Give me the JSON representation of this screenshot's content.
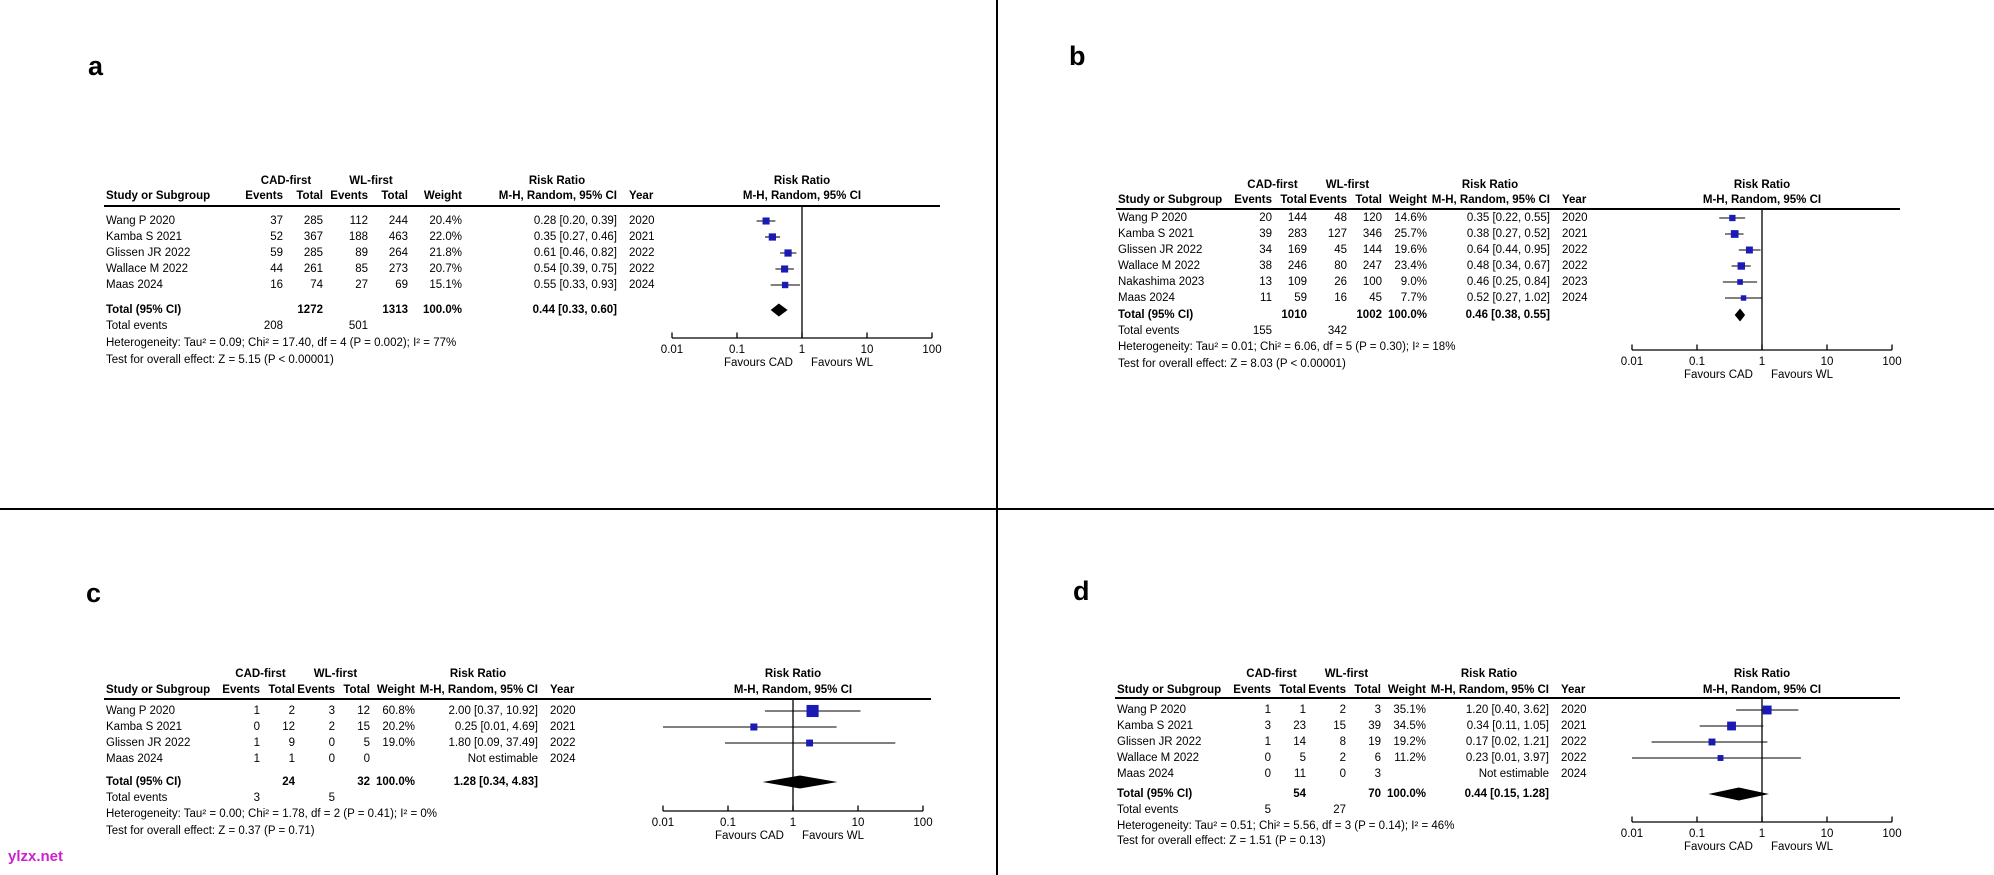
{
  "figure": {
    "watermark": "ylzx.net",
    "watermark_color": "#cc22cc",
    "panel_labels": [
      "a",
      "b",
      "c",
      "d"
    ]
  },
  "headers": {
    "group1": "CAD-first",
    "group2": "WL-first",
    "study": "Study or Subgroup",
    "events": "Events",
    "total": "Total",
    "weight": "Weight",
    "risk_ratio": "Risk Ratio",
    "method_ci": "M-H, Random, 95% CI",
    "year": "Year",
    "total_label": "Total (95% CI)",
    "total_events_label": "Total events"
  },
  "axis": {
    "scale": "log",
    "tick_values": [
      0.01,
      0.1,
      1,
      10,
      100
    ],
    "tick_labels": [
      "0.01",
      "0.1",
      "1",
      "10",
      "100"
    ],
    "favours_left": "Favours CAD",
    "favours_right": "Favours WL"
  },
  "style": {
    "marker_color": "#1a1ab4",
    "diamond_color": "#000000"
  },
  "chart_data": [
    {
      "type": "scatter",
      "subtype": "forest-plot",
      "panel_label": "a",
      "xscale": "log",
      "xlim": [
        0.01,
        100
      ],
      "studies": [
        {
          "study": "Wang P 2020",
          "events1": 37,
          "total1": 285,
          "events2": 112,
          "total2": 244,
          "weight": "20.4%",
          "w": 20.4,
          "ci_text": "0.28 [0.20, 0.39]",
          "year": "2020",
          "rr": 0.28,
          "lo": 0.2,
          "hi": 0.39
        },
        {
          "study": "Kamba S 2021",
          "events1": 52,
          "total1": 367,
          "events2": 188,
          "total2": 463,
          "weight": "22.0%",
          "w": 22.0,
          "ci_text": "0.35 [0.27, 0.46]",
          "year": "2021",
          "rr": 0.35,
          "lo": 0.27,
          "hi": 0.46
        },
        {
          "study": "Glissen JR 2022",
          "events1": 59,
          "total1": 285,
          "events2": 89,
          "total2": 264,
          "weight": "21.8%",
          "w": 21.8,
          "ci_text": "0.61 [0.46, 0.82]",
          "year": "2022",
          "rr": 0.61,
          "lo": 0.46,
          "hi": 0.82
        },
        {
          "study": "Wallace M 2022",
          "events1": 44,
          "total1": 261,
          "events2": 85,
          "total2": 273,
          "weight": "20.7%",
          "w": 20.7,
          "ci_text": "0.54 [0.39, 0.75]",
          "year": "2022",
          "rr": 0.54,
          "lo": 0.39,
          "hi": 0.75
        },
        {
          "study": "Maas 2024",
          "events1": 16,
          "total1": 74,
          "events2": 27,
          "total2": 69,
          "weight": "15.1%",
          "w": 15.1,
          "ci_text": "0.55 [0.33, 0.93]",
          "year": "2024",
          "rr": 0.55,
          "lo": 0.33,
          "hi": 0.93
        }
      ],
      "total": {
        "total1": 1272,
        "total2": 1313,
        "weight": "100.0%",
        "ci_text": "0.44 [0.33, 0.60]",
        "rr": 0.44,
        "lo": 0.33,
        "hi": 0.6
      },
      "total_events": {
        "events1": 208,
        "events2": 501
      },
      "heterogeneity": "Heterogeneity: Tau² = 0.09; Chi² = 17.40, df = 4 (P = 0.002); I² = 77%",
      "overall_test": "Test for overall effect: Z = 5.15 (P < 0.00001)"
    },
    {
      "type": "scatter",
      "subtype": "forest-plot",
      "panel_label": "b",
      "xscale": "log",
      "xlim": [
        0.01,
        100
      ],
      "studies": [
        {
          "study": "Wang P 2020",
          "events1": 20,
          "total1": 144,
          "events2": 48,
          "total2": 120,
          "weight": "14.6%",
          "w": 14.6,
          "ci_text": "0.35 [0.22, 0.55]",
          "year": "2020",
          "rr": 0.35,
          "lo": 0.22,
          "hi": 0.55
        },
        {
          "study": "Kamba S 2021",
          "events1": 39,
          "total1": 283,
          "events2": 127,
          "total2": 346,
          "weight": "25.7%",
          "w": 25.7,
          "ci_text": "0.38 [0.27, 0.52]",
          "year": "2021",
          "rr": 0.38,
          "lo": 0.27,
          "hi": 0.52
        },
        {
          "study": "Glissen JR 2022",
          "events1": 34,
          "total1": 169,
          "events2": 45,
          "total2": 144,
          "weight": "19.6%",
          "w": 19.6,
          "ci_text": "0.64 [0.44, 0.95]",
          "year": "2022",
          "rr": 0.64,
          "lo": 0.44,
          "hi": 0.95
        },
        {
          "study": "Wallace M 2022",
          "events1": 38,
          "total1": 246,
          "events2": 80,
          "total2": 247,
          "weight": "23.4%",
          "w": 23.4,
          "ci_text": "0.48 [0.34, 0.67]",
          "year": "2022",
          "rr": 0.48,
          "lo": 0.34,
          "hi": 0.67
        },
        {
          "study": "Nakashima 2023",
          "events1": 13,
          "total1": 109,
          "events2": 26,
          "total2": 100,
          "weight": "9.0%",
          "w": 9.0,
          "ci_text": "0.46 [0.25, 0.84]",
          "year": "2023",
          "rr": 0.46,
          "lo": 0.25,
          "hi": 0.84
        },
        {
          "study": "Maas 2024",
          "events1": 11,
          "total1": 59,
          "events2": 16,
          "total2": 45,
          "weight": "7.7%",
          "w": 7.7,
          "ci_text": "0.52 [0.27, 1.02]",
          "year": "2024",
          "rr": 0.52,
          "lo": 0.27,
          "hi": 1.02
        }
      ],
      "total": {
        "total1": 1010,
        "total2": 1002,
        "weight": "100.0%",
        "ci_text": "0.46 [0.38, 0.55]",
        "rr": 0.46,
        "lo": 0.38,
        "hi": 0.55
      },
      "total_events": {
        "events1": 155,
        "events2": 342
      },
      "heterogeneity": "Heterogeneity: Tau² = 0.01; Chi² = 6.06, df = 5 (P = 0.30); I² = 18%",
      "overall_test": "Test for overall effect: Z = 8.03 (P < 0.00001)"
    },
    {
      "type": "scatter",
      "subtype": "forest-plot",
      "panel_label": "c",
      "xscale": "log",
      "xlim": [
        0.01,
        100
      ],
      "studies": [
        {
          "study": "Wang P 2020",
          "events1": 1,
          "total1": 2,
          "events2": 3,
          "total2": 12,
          "weight": "60.8%",
          "w": 60.8,
          "ci_text": "2.00 [0.37, 10.92]",
          "year": "2020",
          "rr": 2.0,
          "lo": 0.37,
          "hi": 10.92
        },
        {
          "study": "Kamba S 2021",
          "events1": 0,
          "total1": 12,
          "events2": 2,
          "total2": 15,
          "weight": "20.2%",
          "w": 20.2,
          "ci_text": "0.25 [0.01, 4.69]",
          "year": "2021",
          "rr": 0.25,
          "lo": 0.01,
          "hi": 4.69
        },
        {
          "study": "Glissen JR 2022",
          "events1": 1,
          "total1": 9,
          "events2": 0,
          "total2": 5,
          "weight": "19.0%",
          "w": 19.0,
          "ci_text": "1.80 [0.09, 37.49]",
          "year": "2022",
          "rr": 1.8,
          "lo": 0.09,
          "hi": 37.49
        },
        {
          "study": "Maas 2024",
          "events1": 1,
          "total1": 1,
          "events2": 0,
          "total2": 0,
          "weight": "",
          "w": null,
          "ci_text": "Not estimable",
          "year": "2024",
          "rr": null,
          "lo": null,
          "hi": null
        }
      ],
      "total": {
        "total1": 24,
        "total2": 32,
        "weight": "100.0%",
        "ci_text": "1.28 [0.34, 4.83]",
        "rr": 1.28,
        "lo": 0.34,
        "hi": 4.83
      },
      "total_events": {
        "events1": 3,
        "events2": 5
      },
      "heterogeneity": "Heterogeneity: Tau² = 0.00; Chi² = 1.78, df = 2 (P = 0.41); I² = 0%",
      "overall_test": "Test for overall effect: Z = 0.37 (P = 0.71)"
    },
    {
      "type": "scatter",
      "subtype": "forest-plot",
      "panel_label": "d",
      "xscale": "log",
      "xlim": [
        0.01,
        100
      ],
      "studies": [
        {
          "study": "Wang P 2020",
          "events1": 1,
          "total1": 1,
          "events2": 2,
          "total2": 3,
          "weight": "35.1%",
          "w": 35.1,
          "ci_text": "1.20 [0.40, 3.62]",
          "year": "2020",
          "rr": 1.2,
          "lo": 0.4,
          "hi": 3.62
        },
        {
          "study": "Kamba S 2021",
          "events1": 3,
          "total1": 23,
          "events2": 15,
          "total2": 39,
          "weight": "34.5%",
          "w": 34.5,
          "ci_text": "0.34 [0.11, 1.05]",
          "year": "2021",
          "rr": 0.34,
          "lo": 0.11,
          "hi": 1.05
        },
        {
          "study": "Glissen JR 2022",
          "events1": 1,
          "total1": 14,
          "events2": 8,
          "total2": 19,
          "weight": "19.2%",
          "w": 19.2,
          "ci_text": "0.17 [0.02, 1.21]",
          "year": "2022",
          "rr": 0.17,
          "lo": 0.02,
          "hi": 1.21
        },
        {
          "study": "Wallace M 2022",
          "events1": 0,
          "total1": 5,
          "events2": 2,
          "total2": 6,
          "weight": "11.2%",
          "w": 11.2,
          "ci_text": "0.23 [0.01, 3.97]",
          "year": "2022",
          "rr": 0.23,
          "lo": 0.01,
          "hi": 3.97
        },
        {
          "study": "Maas 2024",
          "events1": 0,
          "total1": 11,
          "events2": 0,
          "total2": 3,
          "weight": "",
          "w": null,
          "ci_text": "Not estimable",
          "year": "2024",
          "rr": null,
          "lo": null,
          "hi": null
        }
      ],
      "total": {
        "total1": 54,
        "total2": 70,
        "weight": "100.0%",
        "ci_text": "0.44 [0.15, 1.28]",
        "rr": 0.44,
        "lo": 0.15,
        "hi": 1.28
      },
      "total_events": {
        "events1": 5,
        "events2": 27
      },
      "heterogeneity": "Heterogeneity: Tau² = 0.51; Chi² = 5.56, df = 3 (P = 0.14); I² = 46%",
      "overall_test": "Test for overall effect: Z = 1.51 (P = 0.13)"
    }
  ]
}
